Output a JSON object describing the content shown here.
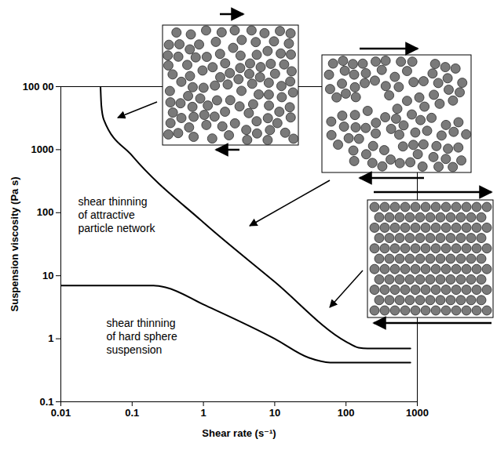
{
  "chart_data": {
    "type": "line",
    "log": true,
    "grid": false,
    "xlabel": "Shear rate (s⁻¹)",
    "ylabel": "Suspension viscosity (Pa s)",
    "xlim": [
      0.01,
      1000
    ],
    "ylim": [
      0.1,
      10000
    ],
    "xticks": [
      0.01,
      0.1,
      1,
      10,
      100,
      1000
    ],
    "yticks": [
      0.1,
      1,
      10,
      100,
      1000,
      {
        "value": 10000,
        "label": "100 00"
      }
    ],
    "series": [
      {
        "name": "shear thinning of attractive particle network",
        "color": "#000000",
        "x": [
          0.036,
          0.037,
          0.04,
          0.1,
          1,
          10,
          100,
          150,
          200,
          800
        ],
        "values": [
          10000,
          5000,
          3000,
          800,
          70,
          8,
          0.9,
          0.72,
          0.7,
          0.7
        ]
      },
      {
        "name": "shear thinning of hard sphere suspension",
        "color": "#000000",
        "x": [
          0.01,
          0.2,
          0.3,
          1,
          10,
          30,
          60,
          800
        ],
        "values": [
          7,
          7,
          6.5,
          3.5,
          1,
          0.5,
          0.42,
          0.42
        ]
      }
    ]
  }
}
